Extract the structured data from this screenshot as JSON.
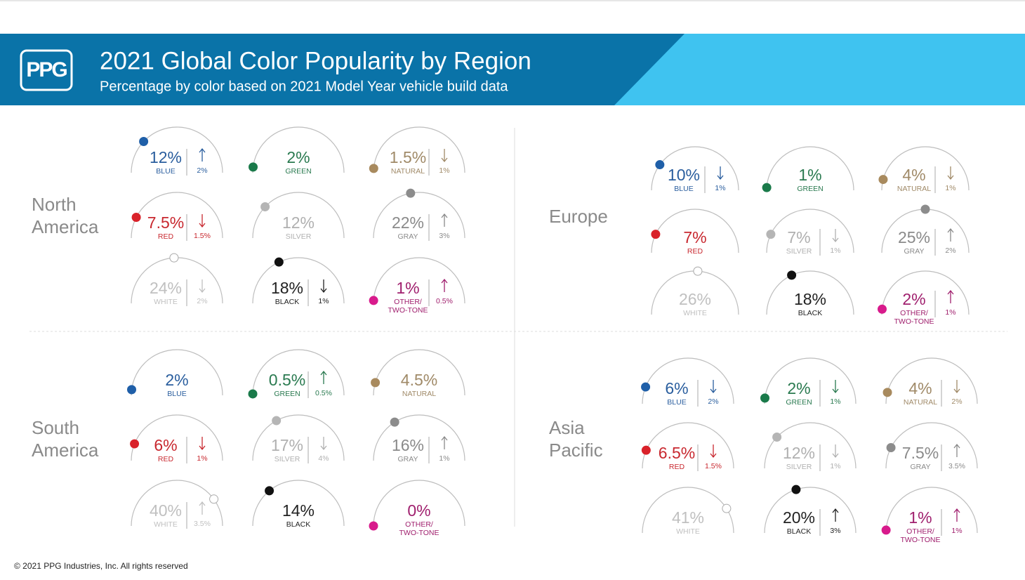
{
  "header": {
    "logo": "PPG",
    "title": "2021 Global Color Popularity by Region",
    "subtitle": "Percentage by color based on 2021 Model Year vehicle build data"
  },
  "dial_range": [
    0,
    50
  ],
  "regions": [
    {
      "name": [
        "North",
        "America"
      ],
      "gauges": [
        {
          "value": 12,
          "label": "12%",
          "name": [
            "BLUE"
          ],
          "color": "#1f5fa8",
          "text_color": "#2a5e9e",
          "change": {
            "dir": "up",
            "label": "2%"
          }
        },
        {
          "value": 2,
          "label": "2%",
          "name": [
            "GREEN"
          ],
          "color": "#1a7a4a",
          "text_color": "#2a7a50"
        },
        {
          "value": 1.5,
          "label": "1.5%",
          "name": [
            "NATURAL"
          ],
          "color": "#a88a5e",
          "text_color": "#a08a68",
          "change": {
            "dir": "down",
            "label": "1%"
          }
        },
        {
          "value": 7.5,
          "label": "7.5%",
          "name": [
            "RED"
          ],
          "color": "#d9222a",
          "text_color": "#c8282f",
          "change": {
            "dir": "down",
            "label": "1.5%"
          }
        },
        {
          "value": 12,
          "label": "12%",
          "name": [
            "SILVER"
          ],
          "color": "#b5b5b5",
          "text_color": "#b0b0b0"
        },
        {
          "value": 22,
          "label": "22%",
          "name": [
            "GRAY"
          ],
          "color": "#8c8c8c",
          "text_color": "#8a8a8a",
          "change": {
            "dir": "up",
            "label": "3%"
          }
        },
        {
          "value": 24,
          "label": "24%",
          "name": [
            "WHITE"
          ],
          "color": "#ffffff",
          "text_color": "#c0c0c0",
          "change": {
            "dir": "down",
            "label": "2%"
          }
        },
        {
          "value": 18,
          "label": "18%",
          "name": [
            "BLACK"
          ],
          "color": "#111111",
          "text_color": "#222222",
          "change": {
            "dir": "down",
            "label": "1%"
          }
        },
        {
          "value": 1,
          "label": "1%",
          "name": [
            "OTHER/",
            "TWO-TONE"
          ],
          "color": "#d81b8c",
          "text_color": "#a0206e",
          "change": {
            "dir": "up",
            "label": "0.5%"
          }
        }
      ]
    },
    {
      "name": [
        "Europe"
      ],
      "gauges": [
        {
          "value": 10,
          "label": "10%",
          "name": [
            "BLUE"
          ],
          "color": "#1f5fa8",
          "text_color": "#2a5e9e",
          "change": {
            "dir": "down",
            "label": "1%"
          }
        },
        {
          "value": 1,
          "label": "1%",
          "name": [
            "GREEN"
          ],
          "color": "#1a7a4a",
          "text_color": "#2a7a50"
        },
        {
          "value": 4,
          "label": "4%",
          "name": [
            "NATURAL"
          ],
          "color": "#a88a5e",
          "text_color": "#a08a68",
          "change": {
            "dir": "down",
            "label": "1%"
          }
        },
        {
          "value": 7,
          "label": "7%",
          "name": [
            "RED"
          ],
          "color": "#d9222a",
          "text_color": "#c8282f"
        },
        {
          "value": 7,
          "label": "7%",
          "name": [
            "SILVER"
          ],
          "color": "#b5b5b5",
          "text_color": "#b0b0b0",
          "change": {
            "dir": "down",
            "label": "1%"
          }
        },
        {
          "value": 25,
          "label": "25%",
          "name": [
            "GRAY"
          ],
          "color": "#8c8c8c",
          "text_color": "#8a8a8a",
          "change": {
            "dir": "up",
            "label": "2%"
          }
        },
        {
          "value": 26,
          "label": "26%",
          "name": [
            "WHITE"
          ],
          "color": "#ffffff",
          "text_color": "#c0c0c0"
        },
        {
          "value": 18,
          "label": "18%",
          "name": [
            "BLACK"
          ],
          "color": "#111111",
          "text_color": "#222222"
        },
        {
          "value": 2,
          "label": "2%",
          "name": [
            "OTHER/",
            "TWO-TONE"
          ],
          "color": "#d81b8c",
          "text_color": "#a0206e",
          "change": {
            "dir": "up",
            "label": "1%"
          }
        }
      ]
    },
    {
      "name": [
        "South",
        "America"
      ],
      "gauges": [
        {
          "value": 2,
          "label": "2%",
          "name": [
            "BLUE"
          ],
          "color": "#1f5fa8",
          "text_color": "#2a5e9e"
        },
        {
          "value": 0.5,
          "label": "0.5%",
          "name": [
            "GREEN"
          ],
          "color": "#1a7a4a",
          "text_color": "#2a7a50",
          "change": {
            "dir": "up",
            "label": "0.5%"
          }
        },
        {
          "value": 4.5,
          "label": "4.5%",
          "name": [
            "NATURAL"
          ],
          "color": "#a88a5e",
          "text_color": "#a08a68"
        },
        {
          "value": 6,
          "label": "6%",
          "name": [
            "RED"
          ],
          "color": "#d9222a",
          "text_color": "#c8282f",
          "change": {
            "dir": "down",
            "label": "1%"
          }
        },
        {
          "value": 17,
          "label": "17%",
          "name": [
            "SILVER"
          ],
          "color": "#b5b5b5",
          "text_color": "#b0b0b0",
          "change": {
            "dir": "down",
            "label": "4%"
          }
        },
        {
          "value": 16,
          "label": "16%",
          "name": [
            "GRAY"
          ],
          "color": "#8c8c8c",
          "text_color": "#8a8a8a",
          "change": {
            "dir": "up",
            "label": "1%"
          }
        },
        {
          "value": 40,
          "label": "40%",
          "name": [
            "WHITE"
          ],
          "color": "#ffffff",
          "text_color": "#c0c0c0",
          "change": {
            "dir": "up",
            "label": "3.5%"
          }
        },
        {
          "value": 14,
          "label": "14%",
          "name": [
            "BLACK"
          ],
          "color": "#111111",
          "text_color": "#222222"
        },
        {
          "value": 0,
          "label": "0%",
          "name": [
            "OTHER/",
            "TWO-TONE"
          ],
          "color": "#d81b8c",
          "text_color": "#a0206e"
        }
      ]
    },
    {
      "name": [
        "Asia",
        "Pacific"
      ],
      "gauges": [
        {
          "value": 6,
          "label": "6%",
          "name": [
            "BLUE"
          ],
          "color": "#1f5fa8",
          "text_color": "#2a5e9e",
          "change": {
            "dir": "down",
            "label": "2%"
          }
        },
        {
          "value": 2,
          "label": "2%",
          "name": [
            "GREEN"
          ],
          "color": "#1a7a4a",
          "text_color": "#2a7a50",
          "change": {
            "dir": "down",
            "label": "1%"
          }
        },
        {
          "value": 4,
          "label": "4%",
          "name": [
            "NATURAL"
          ],
          "color": "#a88a5e",
          "text_color": "#a08a68",
          "change": {
            "dir": "down",
            "label": "2%"
          }
        },
        {
          "value": 6.5,
          "label": "6.5%",
          "name": [
            "RED"
          ],
          "color": "#d9222a",
          "text_color": "#c8282f",
          "change": {
            "dir": "down",
            "label": "1.5%"
          }
        },
        {
          "value": 12,
          "label": "12%",
          "name": [
            "SILVER"
          ],
          "color": "#b5b5b5",
          "text_color": "#b0b0b0",
          "change": {
            "dir": "down",
            "label": "1%"
          }
        },
        {
          "value": 7.5,
          "label": "7.5%",
          "name": [
            "GRAY"
          ],
          "color": "#8c8c8c",
          "text_color": "#8a8a8a",
          "change": {
            "dir": "up",
            "label": "3.5%"
          }
        },
        {
          "value": 41,
          "label": "41%",
          "name": [
            "WHITE"
          ],
          "color": "#ffffff",
          "text_color": "#c0c0c0"
        },
        {
          "value": 20,
          "label": "20%",
          "name": [
            "BLACK"
          ],
          "color": "#111111",
          "text_color": "#222222",
          "change": {
            "dir": "up",
            "label": "3%"
          }
        },
        {
          "value": 1,
          "label": "1%",
          "name": [
            "OTHER/",
            "TWO-TONE"
          ],
          "color": "#d81b8c",
          "text_color": "#a0206e",
          "change": {
            "dir": "up",
            "label": "1%"
          }
        }
      ]
    }
  ],
  "footer": "© 2021 PPG Industries, Inc. All rights reserved"
}
